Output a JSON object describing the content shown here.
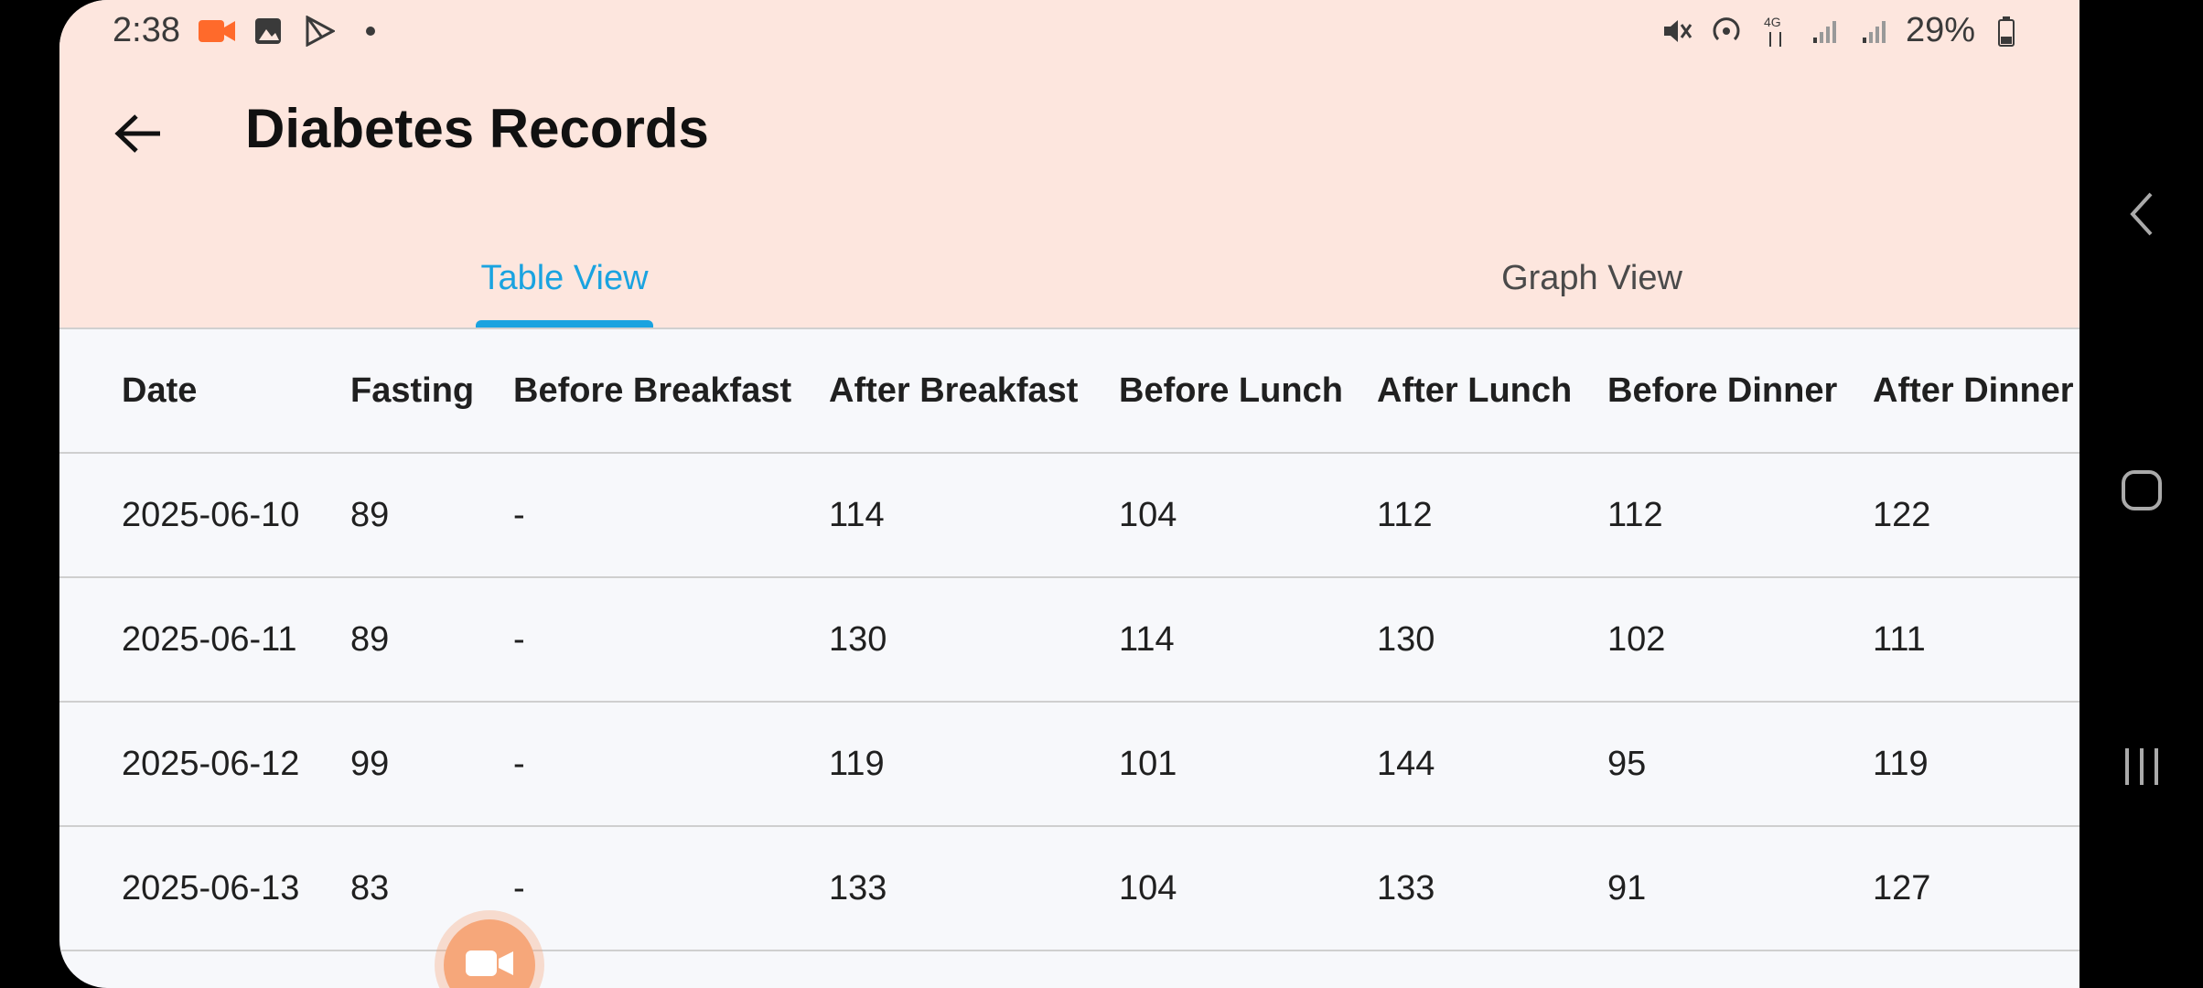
{
  "status_bar": {
    "time": "2:38",
    "battery": "29%"
  },
  "header": {
    "title": "Diabetes Records",
    "back_icon": "arrow-left-icon"
  },
  "tabs": [
    {
      "label": "Table View",
      "active": true
    },
    {
      "label": "Graph View",
      "active": false
    }
  ],
  "table": {
    "columns": [
      "Date",
      "Fasting",
      "Before Breakfast",
      "After Breakfast",
      "Before Lunch",
      "After Lunch",
      "Before Dinner",
      "After Dinner"
    ],
    "rows": [
      [
        "2025-06-10",
        "89",
        "-",
        "114",
        "104",
        "112",
        "112",
        "122"
      ],
      [
        "2025-06-11",
        "89",
        "-",
        "130",
        "114",
        "130",
        "102",
        "111"
      ],
      [
        "2025-06-12",
        "99",
        "-",
        "119",
        "101",
        "144",
        "95",
        "119"
      ],
      [
        "2025-06-13",
        "83",
        "-",
        "133",
        "104",
        "133",
        "91",
        "127"
      ]
    ]
  },
  "colors": {
    "accent": "#1aa3e0",
    "header_bg": "#fde6de",
    "fab": "#f6a77a"
  }
}
